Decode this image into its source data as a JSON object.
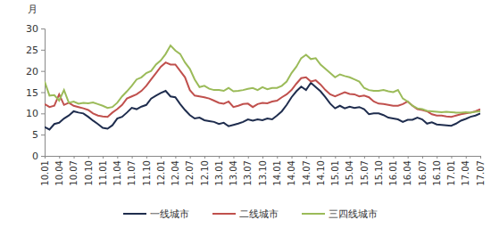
{
  "chart_data": {
    "type": "line",
    "y_label": "月",
    "categories": [
      "10.01",
      null,
      null,
      "10.04",
      null,
      null,
      "10.07",
      null,
      null,
      "10.10",
      null,
      null,
      "11.01",
      null,
      null,
      "11.04",
      null,
      null,
      "11.07",
      null,
      null,
      "11.10",
      null,
      null,
      "12.01",
      null,
      null,
      "12.04",
      null,
      null,
      "12.07",
      null,
      null,
      "12.10",
      null,
      null,
      "13.01",
      null,
      null,
      "13.04",
      null,
      null,
      "13.07",
      null,
      null,
      "13.10",
      null,
      null,
      "14.01",
      null,
      null,
      "14.04",
      null,
      null,
      "14.07",
      null,
      null,
      "14.10",
      null,
      null,
      "15.01",
      null,
      null,
      "15.04",
      null,
      null,
      "15.07",
      null,
      null,
      "15.10",
      null,
      null,
      "16.01",
      null,
      null,
      "16.04",
      null,
      null,
      "16.07",
      null,
      null,
      "16.10",
      null,
      null,
      "17.01",
      null,
      null,
      "17.04",
      null,
      null,
      "17.07"
    ],
    "series": [
      {
        "name": "一线城市",
        "color": "#1f2d4e",
        "values": [
          6.8,
          6.2,
          7.5,
          7.8,
          8.8,
          9.5,
          10.5,
          10.2,
          10.0,
          9.2,
          8.3,
          7.5,
          6.6,
          6.4,
          7.2,
          8.8,
          9.2,
          10.2,
          11.3,
          11.0,
          11.6,
          12.0,
          13.5,
          14.2,
          14.8,
          15.3,
          14.0,
          13.8,
          12.2,
          10.8,
          9.6,
          8.8,
          9.0,
          8.4,
          8.2,
          8.0,
          7.5,
          7.8,
          7.0,
          7.3,
          7.6,
          8.0,
          8.6,
          8.3,
          8.6,
          8.4,
          8.8,
          8.6,
          9.5,
          10.5,
          12.0,
          13.8,
          15.2,
          16.3,
          15.5,
          17.2,
          16.2,
          15.2,
          13.8,
          12.3,
          11.2,
          11.8,
          11.2,
          11.6,
          11.3,
          11.5,
          11.0,
          9.8,
          10.0,
          10.0,
          9.6,
          9.0,
          8.8,
          8.6,
          8.0,
          8.5,
          8.5,
          9.0,
          8.6,
          7.6,
          7.9,
          7.4,
          7.3,
          7.2,
          7.1,
          7.6,
          8.3,
          8.7,
          9.2,
          9.5,
          10.0
        ]
      },
      {
        "name": "二线城市",
        "color": "#c0504d",
        "values": [
          12.2,
          11.5,
          11.8,
          14.5,
          12.0,
          12.5,
          11.8,
          11.5,
          11.2,
          10.8,
          10.0,
          9.5,
          9.3,
          9.2,
          10.2,
          11.0,
          12.0,
          13.5,
          14.0,
          14.5,
          15.3,
          16.5,
          18.0,
          19.5,
          21.0,
          22.0,
          21.5,
          21.5,
          20.0,
          18.5,
          15.5,
          14.2,
          14.0,
          13.8,
          13.5,
          13.0,
          12.5,
          12.3,
          12.8,
          11.5,
          11.8,
          12.2,
          12.3,
          11.5,
          12.2,
          12.5,
          12.4,
          12.8,
          13.0,
          13.8,
          14.5,
          15.5,
          17.0,
          18.3,
          18.5,
          17.5,
          17.8,
          16.8,
          15.5,
          14.5,
          14.0,
          14.5,
          15.0,
          14.6,
          14.5,
          14.0,
          14.2,
          13.8,
          12.8,
          12.3,
          12.2,
          12.0,
          11.8,
          11.8,
          12.2,
          12.8,
          11.8,
          11.0,
          10.8,
          10.5,
          9.8,
          9.5,
          9.5,
          9.3,
          9.2,
          9.5,
          9.8,
          10.0,
          10.2,
          10.5,
          11.0
        ]
      },
      {
        "name": "三四线城市",
        "color": "#9bbb59",
        "values": [
          17.5,
          14.2,
          14.3,
          13.0,
          15.5,
          12.5,
          12.8,
          12.3,
          12.5,
          12.4,
          12.6,
          12.2,
          11.8,
          11.3,
          11.5,
          12.5,
          14.0,
          15.2,
          16.5,
          18.0,
          18.5,
          19.5,
          20.0,
          21.5,
          22.5,
          24.0,
          26.0,
          24.8,
          24.0,
          22.0,
          20.5,
          18.0,
          16.2,
          16.5,
          15.8,
          15.5,
          15.5,
          15.3,
          16.0,
          15.2,
          15.3,
          15.5,
          15.8,
          16.0,
          15.5,
          16.2,
          15.7,
          16.0,
          16.0,
          16.5,
          17.5,
          19.5,
          21.0,
          23.0,
          23.8,
          22.8,
          23.0,
          21.5,
          20.5,
          19.5,
          18.5,
          19.2,
          18.8,
          18.5,
          18.0,
          17.5,
          16.0,
          15.5,
          15.3,
          15.3,
          15.5,
          15.2,
          15.0,
          15.5,
          13.5,
          12.8,
          11.8,
          11.2,
          11.0,
          10.6,
          10.5,
          10.4,
          10.3,
          10.4,
          10.3,
          10.2,
          10.2,
          10.3,
          10.2,
          10.4,
          10.5
        ]
      }
    ],
    "ylim": [
      0,
      30
    ],
    "yticks": [
      0,
      5,
      10,
      15,
      20,
      25,
      30
    ],
    "legend": "bottom"
  }
}
